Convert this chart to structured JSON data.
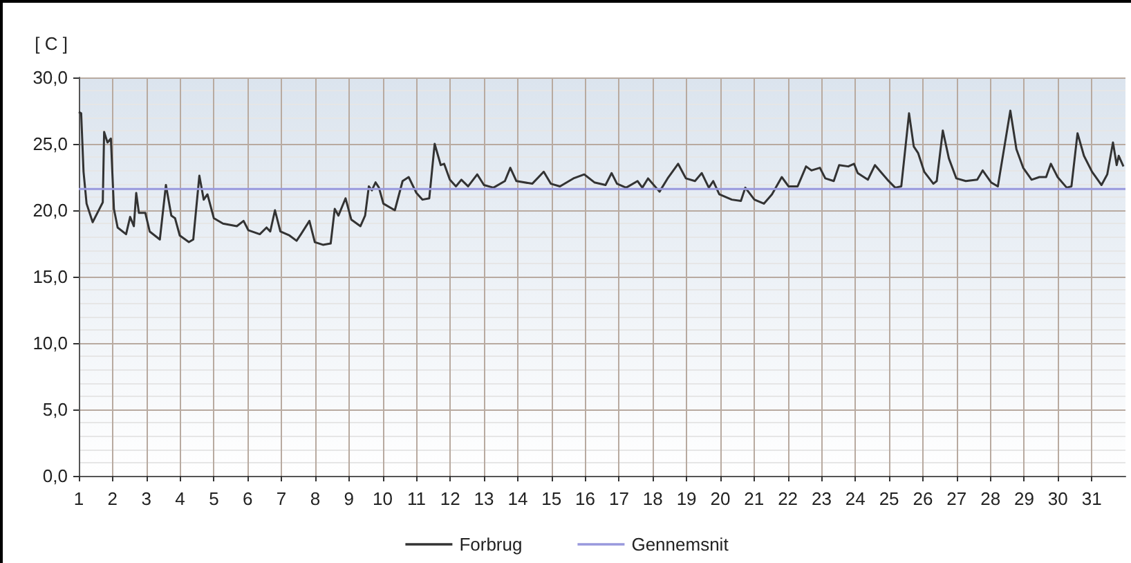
{
  "chart_data": {
    "type": "line",
    "ylabel": "[ C ]",
    "xlim": [
      1,
      32
    ],
    "xticks": [
      1,
      2,
      3,
      4,
      5,
      6,
      7,
      8,
      9,
      10,
      11,
      12,
      13,
      14,
      15,
      16,
      17,
      18,
      19,
      20,
      21,
      22,
      23,
      24,
      25,
      26,
      27,
      28,
      29,
      30,
      31
    ],
    "ylim": [
      0,
      30
    ],
    "yticks": [
      {
        "value": 0,
        "label": "0,0"
      },
      {
        "value": 5,
        "label": "5,0"
      },
      {
        "value": 10,
        "label": "10,0"
      },
      {
        "value": 15,
        "label": "15,0"
      },
      {
        "value": 20,
        "label": "20,0"
      },
      {
        "value": 25,
        "label": "25,0"
      },
      {
        "value": 30,
        "label": "30,0"
      }
    ],
    "grid": true,
    "legend": "bottom",
    "marker": "none",
    "line_style": "solid",
    "series": [
      {
        "name": "Forbrug",
        "color": "#333333",
        "x": [
          1,
          1.07,
          1.14,
          1.23,
          1.41,
          1.61,
          1.71,
          1.75,
          1.85,
          1.95,
          2.04,
          2.15,
          2.4,
          2.52,
          2.63,
          2.7,
          2.78,
          2.97,
          3.1,
          3.4,
          3.58,
          3.74,
          3.85,
          3.99,
          4.26,
          4.39,
          4.57,
          4.7,
          4.81,
          5,
          5.27,
          5.68,
          5.88,
          6.02,
          6.36,
          6.56,
          6.67,
          6.81,
          6.97,
          7.24,
          7.45,
          7.58,
          7.83,
          7.99,
          8.23,
          8.46,
          8.58,
          8.69,
          8.9,
          9.07,
          9.34,
          9.48,
          9.59,
          9.68,
          9.79,
          9.89,
          10.02,
          10.36,
          10.59,
          10.77,
          11,
          11.18,
          11.38,
          11.54,
          11.72,
          11.82,
          11.99,
          12.17,
          12.33,
          12.53,
          12.8,
          13,
          13.28,
          13.62,
          13.78,
          13.96,
          14.43,
          14.77,
          14.98,
          15.25,
          15.65,
          15.97,
          16.27,
          16.6,
          16.78,
          16.94,
          17.21,
          17.55,
          17.69,
          17.86,
          18.2,
          18.44,
          18.75,
          18.98,
          19.25,
          19.45,
          19.66,
          19.79,
          19.97,
          20.34,
          20.61,
          20.74,
          21.01,
          21.29,
          21.53,
          21.82,
          22.02,
          22.29,
          22.54,
          22.7,
          22.95,
          23.11,
          23.36,
          23.52,
          23.79,
          23.96,
          24.07,
          24.37,
          24.58,
          24.95,
          25.18,
          25.36,
          25.59,
          25.73,
          25.86,
          26.04,
          26.31,
          26.41,
          26.59,
          26.77,
          26.99,
          27.27,
          27.61,
          27.77,
          28.02,
          28.22,
          28.59,
          28.77,
          28.97,
          29.22,
          29.45,
          29.65,
          29.79,
          29.99,
          30.26,
          30.4,
          30.58,
          30.77,
          31.01,
          31.29,
          31.46,
          31.63,
          31.74,
          31.8,
          31.94
        ],
        "values": [
          27.4,
          27.3,
          22.9,
          20.5,
          19.1,
          20.1,
          20.6,
          25.9,
          25.1,
          25.4,
          20.1,
          18.7,
          18.2,
          19.5,
          18.8,
          21.3,
          19.8,
          19.8,
          18.4,
          17.8,
          21.9,
          19.6,
          19.4,
          18.1,
          17.6,
          17.8,
          22.6,
          20.8,
          21.2,
          19.4,
          19,
          18.8,
          19.2,
          18.5,
          18.2,
          18.7,
          18.4,
          20,
          18.4,
          18.1,
          17.7,
          18.2,
          19.2,
          17.6,
          17.4,
          17.5,
          20.1,
          19.6,
          20.9,
          19.3,
          18.8,
          19.6,
          21.8,
          21.5,
          22.1,
          21.7,
          20.5,
          20,
          22.2,
          22.5,
          21.3,
          20.8,
          20.9,
          25,
          23.4,
          23.5,
          22.3,
          21.8,
          22.3,
          21.8,
          22.7,
          21.9,
          21.7,
          22.2,
          23.2,
          22.2,
          22,
          22.9,
          22,
          21.8,
          22.4,
          22.7,
          22.1,
          21.9,
          22.8,
          22,
          21.7,
          22.2,
          21.7,
          22.4,
          21.4,
          22.4,
          23.5,
          22.4,
          22.2,
          22.8,
          21.7,
          22.2,
          21.2,
          20.8,
          20.7,
          21.7,
          20.8,
          20.5,
          21.2,
          22.5,
          21.8,
          21.8,
          23.3,
          23,
          23.2,
          22.4,
          22.2,
          23.4,
          23.3,
          23.5,
          22.8,
          22.3,
          23.4,
          22.3,
          21.7,
          21.8,
          27.3,
          24.8,
          24.3,
          22.9,
          22,
          22.2,
          26,
          23.9,
          22.4,
          22.2,
          22.3,
          23,
          22.1,
          21.8,
          27.5,
          24.6,
          23.2,
          22.3,
          22.5,
          22.5,
          23.5,
          22.5,
          21.7,
          21.8,
          25.8,
          24.1,
          22.9,
          21.9,
          22.7,
          25.1,
          23.4,
          24.1,
          23.3
        ]
      },
      {
        "name": "Gennemsnit",
        "color": "#9999dd",
        "x": [
          1,
          32
        ],
        "values": [
          21.6,
          21.6
        ]
      }
    ]
  }
}
